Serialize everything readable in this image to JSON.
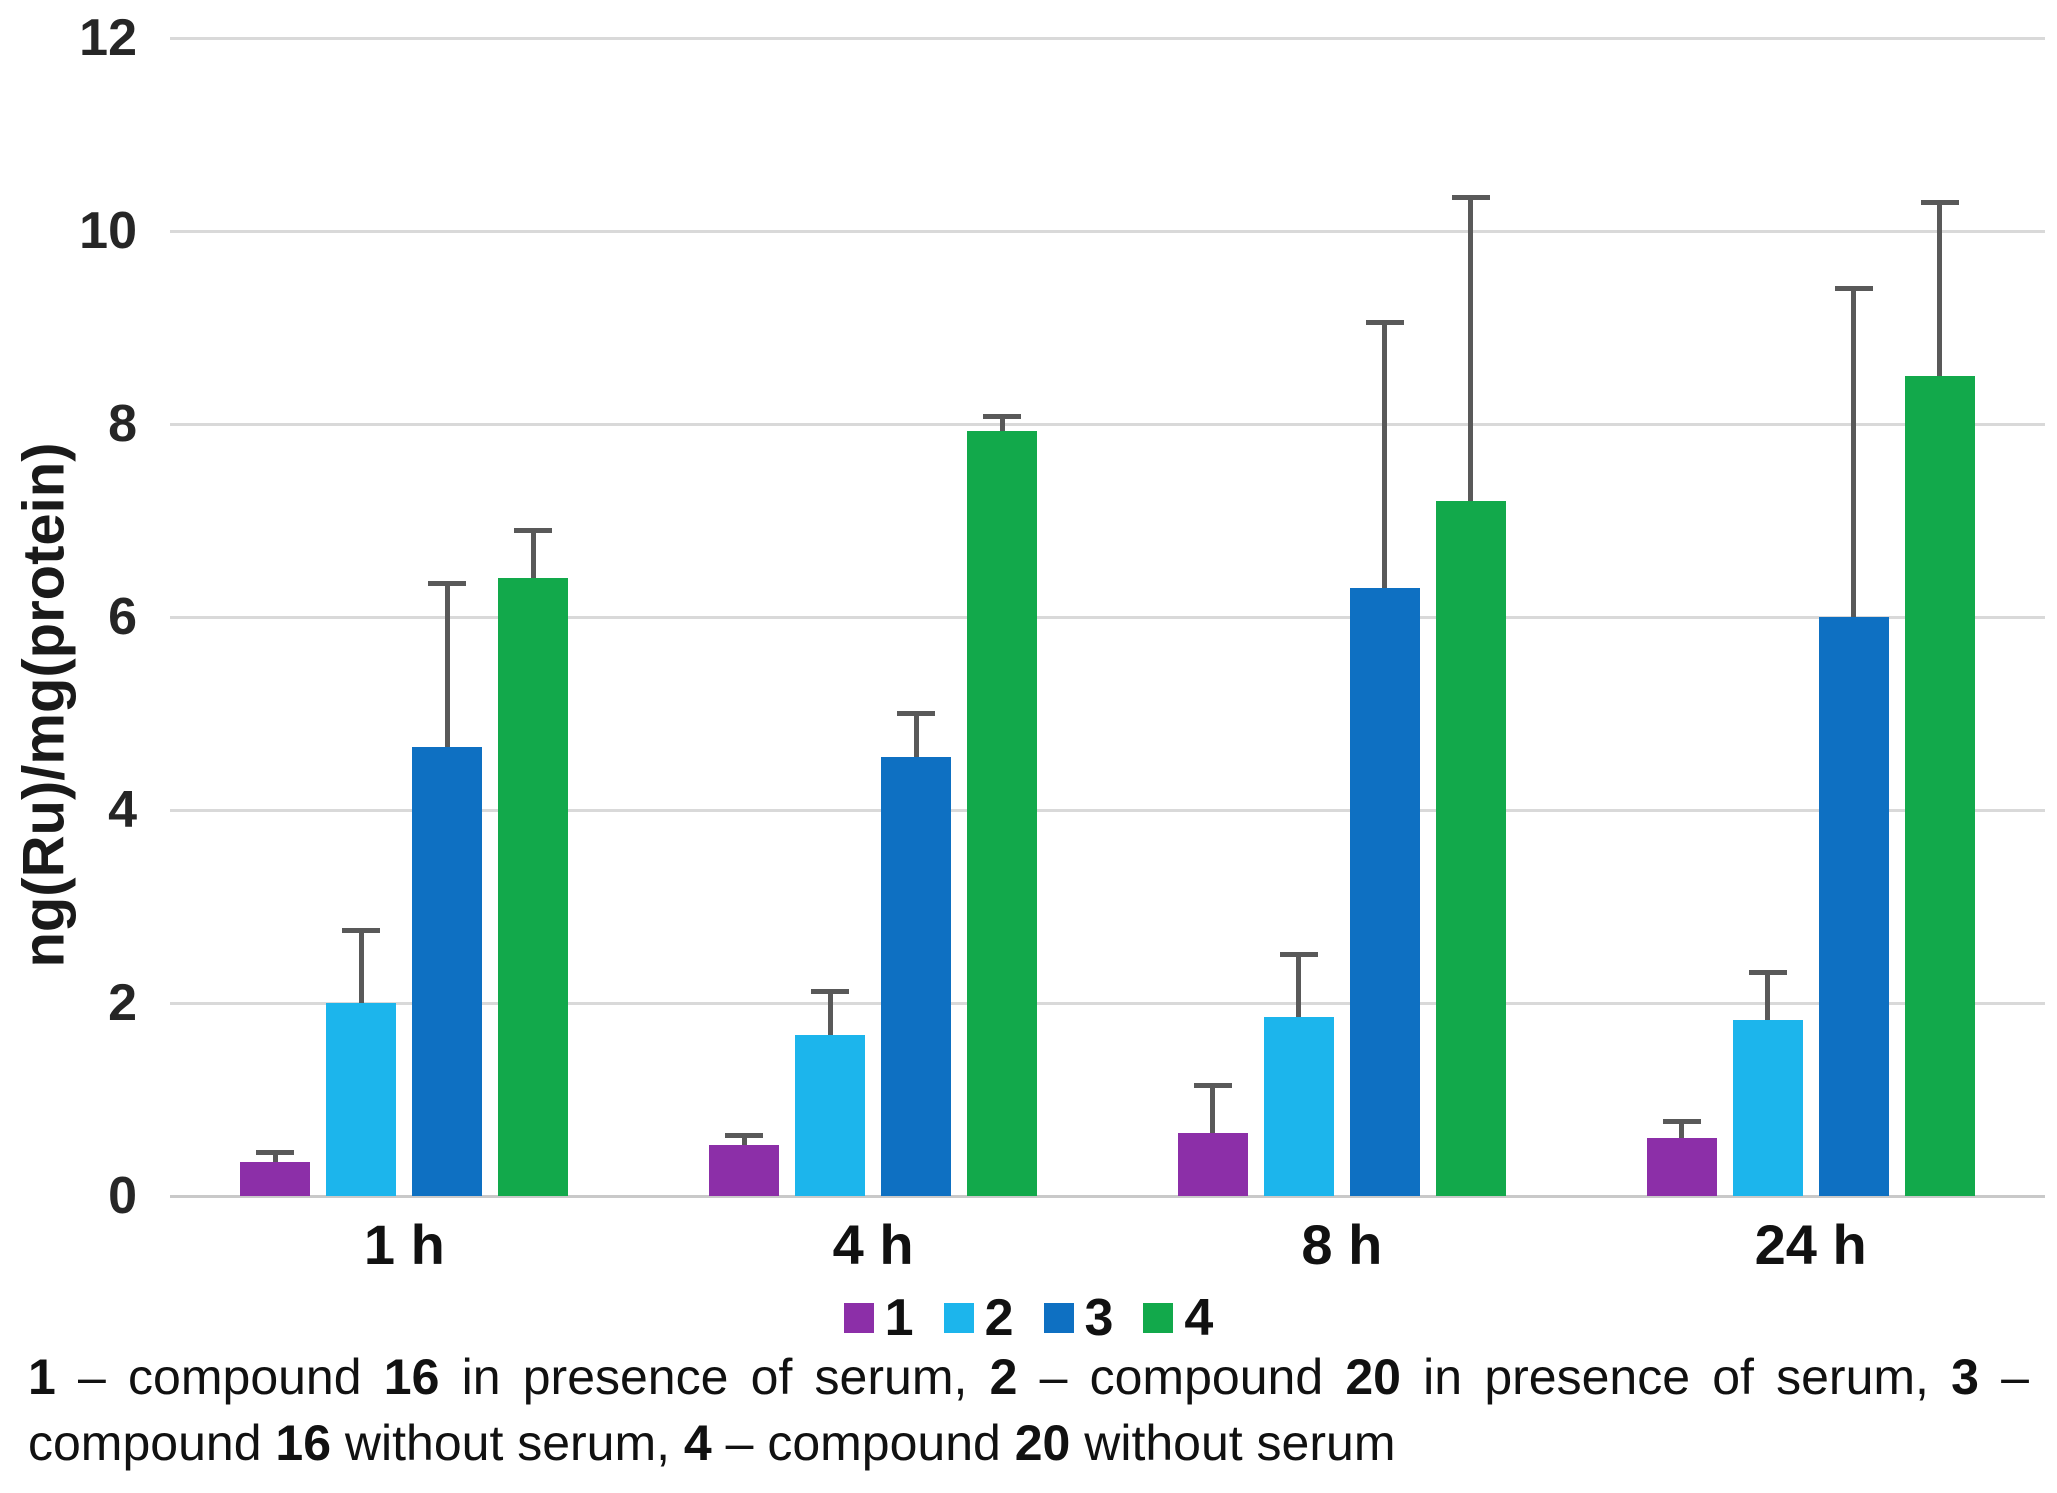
{
  "colors": {
    "gridline": "#d9d9d9",
    "baseline": "#c9c9c9",
    "error_bar": "#595959",
    "tick_text": "#262626"
  },
  "chart_data": {
    "type": "bar",
    "title": "",
    "xlabel": "",
    "ylabel": "ng(Ru)/mg(protein)",
    "ylim": [
      0,
      12
    ],
    "yticks": [
      0,
      2,
      4,
      6,
      8,
      10,
      12
    ],
    "grid": "horizontal gridlines only",
    "legend_position": "bottom center",
    "categories": [
      "1 h",
      "4 h",
      "8 h",
      "24 h"
    ],
    "series": [
      {
        "name": "1",
        "color": "#8C2FA8",
        "values": [
          0.35,
          0.53,
          0.65,
          0.6
        ],
        "error_up": [
          0.1,
          0.1,
          0.5,
          0.17
        ]
      },
      {
        "name": "2",
        "color": "#1CB5EC",
        "values": [
          2.0,
          1.67,
          1.85,
          1.82
        ],
        "error_up": [
          0.75,
          0.45,
          0.65,
          0.5
        ]
      },
      {
        "name": "3",
        "color": "#0E70C2",
        "values": [
          4.65,
          4.55,
          6.3,
          6.0
        ],
        "error_up": [
          1.7,
          0.45,
          2.75,
          3.4
        ]
      },
      {
        "name": "4",
        "color": "#12A94B",
        "values": [
          6.4,
          7.93,
          7.2,
          8.5
        ],
        "error_up": [
          0.5,
          0.15,
          3.15,
          1.8
        ]
      }
    ]
  },
  "caption": {
    "line1": [
      {
        "text": "1",
        "bold": true
      },
      {
        "text": " – compound ",
        "bold": false
      },
      {
        "text": "16",
        "bold": true
      },
      {
        "text": " in presence of serum, ",
        "bold": false
      },
      {
        "text": "2",
        "bold": true
      },
      {
        "text": " – compound ",
        "bold": false
      },
      {
        "text": "20",
        "bold": true
      },
      {
        "text": " in presence of serum, ",
        "bold": false
      },
      {
        "text": "3",
        "bold": true
      },
      {
        "text": " –",
        "bold": false
      }
    ],
    "line2": [
      {
        "text": "compound ",
        "bold": false
      },
      {
        "text": "16",
        "bold": true
      },
      {
        "text": " without serum, ",
        "bold": false
      },
      {
        "text": "4",
        "bold": true
      },
      {
        "text": " – compound ",
        "bold": false
      },
      {
        "text": "20",
        "bold": true
      },
      {
        "text": " without serum",
        "bold": false
      }
    ]
  }
}
